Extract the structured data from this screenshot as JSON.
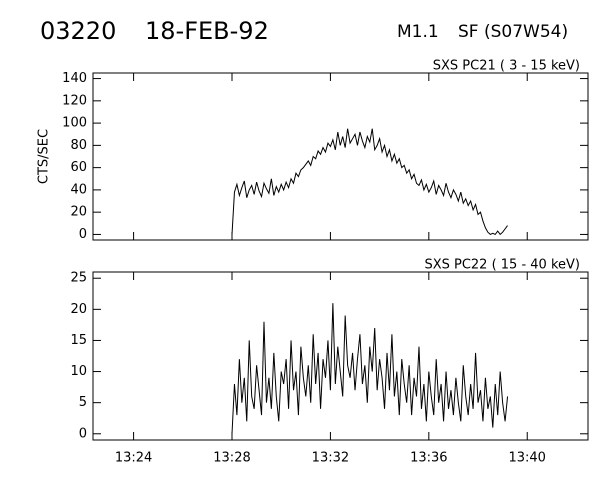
{
  "header": {
    "id": "03220",
    "date": "18-FEB-92",
    "class": "M1.1",
    "location": "SF (S07W54)"
  },
  "chart_data": [
    {
      "type": "line",
      "title": "SXS PC21  (  3 - 15 keV)",
      "y_label": "CTS/SEC",
      "color": "#000000",
      "x": [
        28,
        28.1,
        28.2,
        28.3,
        28.4,
        28.5,
        28.6,
        28.7,
        28.8,
        28.9,
        29,
        29.1,
        29.2,
        29.3,
        29.4,
        29.5,
        29.6,
        29.7,
        29.8,
        29.9,
        30,
        30.1,
        30.2,
        30.3,
        30.4,
        30.5,
        30.6,
        30.7,
        30.8,
        30.9,
        31,
        31.1,
        31.2,
        31.3,
        31.4,
        31.5,
        31.6,
        31.7,
        31.8,
        31.9,
        32,
        32.1,
        32.2,
        32.3,
        32.4,
        32.5,
        32.6,
        32.7,
        32.8,
        32.9,
        33,
        33.1,
        33.2,
        33.3,
        33.4,
        33.5,
        33.6,
        33.7,
        33.8,
        33.9,
        34,
        34.1,
        34.2,
        34.3,
        34.4,
        34.5,
        34.6,
        34.7,
        34.8,
        34.9,
        35,
        35.1,
        35.2,
        35.3,
        35.4,
        35.5,
        35.6,
        35.7,
        35.8,
        35.9,
        36,
        36.1,
        36.2,
        36.3,
        36.4,
        36.5,
        36.6,
        36.7,
        36.8,
        36.9,
        37,
        37.1,
        37.2,
        37.3,
        37.4,
        37.5,
        37.6,
        37.7,
        37.8,
        37.9,
        38,
        38.1,
        38.2,
        38.3,
        38.4,
        38.5,
        38.6,
        38.7,
        38.8,
        38.9,
        39,
        39.1,
        39.2
      ],
      "values": [
        0,
        38,
        45,
        35,
        42,
        48,
        33,
        40,
        44,
        36,
        47,
        39,
        34,
        46,
        41,
        37,
        50,
        35,
        43,
        38,
        45,
        40,
        47,
        42,
        50,
        46,
        55,
        52,
        58,
        60,
        63,
        66,
        62,
        70,
        68,
        75,
        72,
        78,
        74,
        82,
        79,
        85,
        76,
        92,
        80,
        88,
        78,
        95,
        82,
        86,
        90,
        80,
        92,
        84,
        78,
        88,
        83,
        95,
        76,
        80,
        86,
        74,
        80,
        70,
        76,
        66,
        72,
        64,
        68,
        60,
        62,
        55,
        58,
        50,
        54,
        46,
        44,
        49,
        40,
        45,
        38,
        42,
        48,
        36,
        44,
        40,
        35,
        46,
        38,
        33,
        40,
        36,
        30,
        38,
        28,
        32,
        26,
        30,
        22,
        27,
        18,
        20,
        12,
        6,
        2,
        0,
        1,
        0,
        3,
        0,
        2,
        5,
        8
      ],
      "xlim": [
        22.35,
        42.47
      ],
      "ylim": [
        -5,
        145
      ],
      "yticks": [
        0,
        20,
        40,
        60,
        80,
        100,
        120,
        140
      ]
    },
    {
      "type": "line",
      "title": "SXS PC22  ( 15 - 40 keV)",
      "color": "#000000",
      "x": [
        28,
        28.1,
        28.2,
        28.3,
        28.4,
        28.5,
        28.6,
        28.7,
        28.8,
        28.9,
        29,
        29.1,
        29.2,
        29.3,
        29.4,
        29.5,
        29.6,
        29.7,
        29.8,
        29.9,
        30,
        30.1,
        30.2,
        30.3,
        30.4,
        30.5,
        30.6,
        30.7,
        30.8,
        30.9,
        31,
        31.1,
        31.2,
        31.3,
        31.4,
        31.5,
        31.6,
        31.7,
        31.8,
        31.9,
        32,
        32.1,
        32.2,
        32.3,
        32.4,
        32.5,
        32.6,
        32.7,
        32.8,
        32.9,
        33,
        33.1,
        33.2,
        33.3,
        33.4,
        33.5,
        33.6,
        33.7,
        33.8,
        33.9,
        34,
        34.1,
        34.2,
        34.3,
        34.4,
        34.5,
        34.6,
        34.7,
        34.8,
        34.9,
        35,
        35.1,
        35.2,
        35.3,
        35.4,
        35.5,
        35.6,
        35.7,
        35.8,
        35.9,
        36,
        36.1,
        36.2,
        36.3,
        36.4,
        36.5,
        36.6,
        36.7,
        36.8,
        36.9,
        37,
        37.1,
        37.2,
        37.3,
        37.4,
        37.5,
        37.6,
        37.7,
        37.8,
        37.9,
        38,
        38.1,
        38.2,
        38.3,
        38.4,
        38.5,
        38.6,
        38.7,
        38.8,
        38.9,
        39,
        39.1,
        39.2
      ],
      "values": [
        0,
        8,
        3,
        12,
        5,
        9,
        2,
        15,
        6,
        4,
        11,
        7,
        3,
        18,
        5,
        9,
        4,
        13,
        6,
        2,
        10,
        8,
        12,
        4,
        15,
        7,
        10,
        3,
        14,
        9,
        6,
        11,
        5,
        16,
        8,
        13,
        4,
        12,
        9,
        15,
        7,
        21,
        8,
        14,
        10,
        6,
        19,
        11,
        9,
        13,
        7,
        12,
        16,
        8,
        11,
        5,
        14,
        10,
        17,
        7,
        12,
        9,
        4,
        13,
        7,
        16,
        6,
        10,
        3,
        12,
        8,
        5,
        11,
        3,
        9,
        6,
        14,
        4,
        8,
        2,
        10,
        6,
        3,
        12,
        5,
        8,
        2,
        10,
        4,
        7,
        3,
        9,
        5,
        2,
        11,
        6,
        3,
        8,
        4,
        13,
        5,
        7,
        2,
        9,
        4,
        6,
        1,
        8,
        3,
        10,
        5,
        2,
        6
      ],
      "xlim": [
        22.35,
        42.47
      ],
      "ylim": [
        -1,
        26
      ],
      "yticks": [
        0,
        5,
        10,
        15,
        20,
        25
      ],
      "xticks": [
        {
          "value": 24,
          "label": "13:24"
        },
        {
          "value": 28,
          "label": "13:28"
        },
        {
          "value": 32,
          "label": "13:32"
        },
        {
          "value": 36,
          "label": "13:36"
        },
        {
          "value": 40,
          "label": "13:40"
        }
      ]
    }
  ]
}
